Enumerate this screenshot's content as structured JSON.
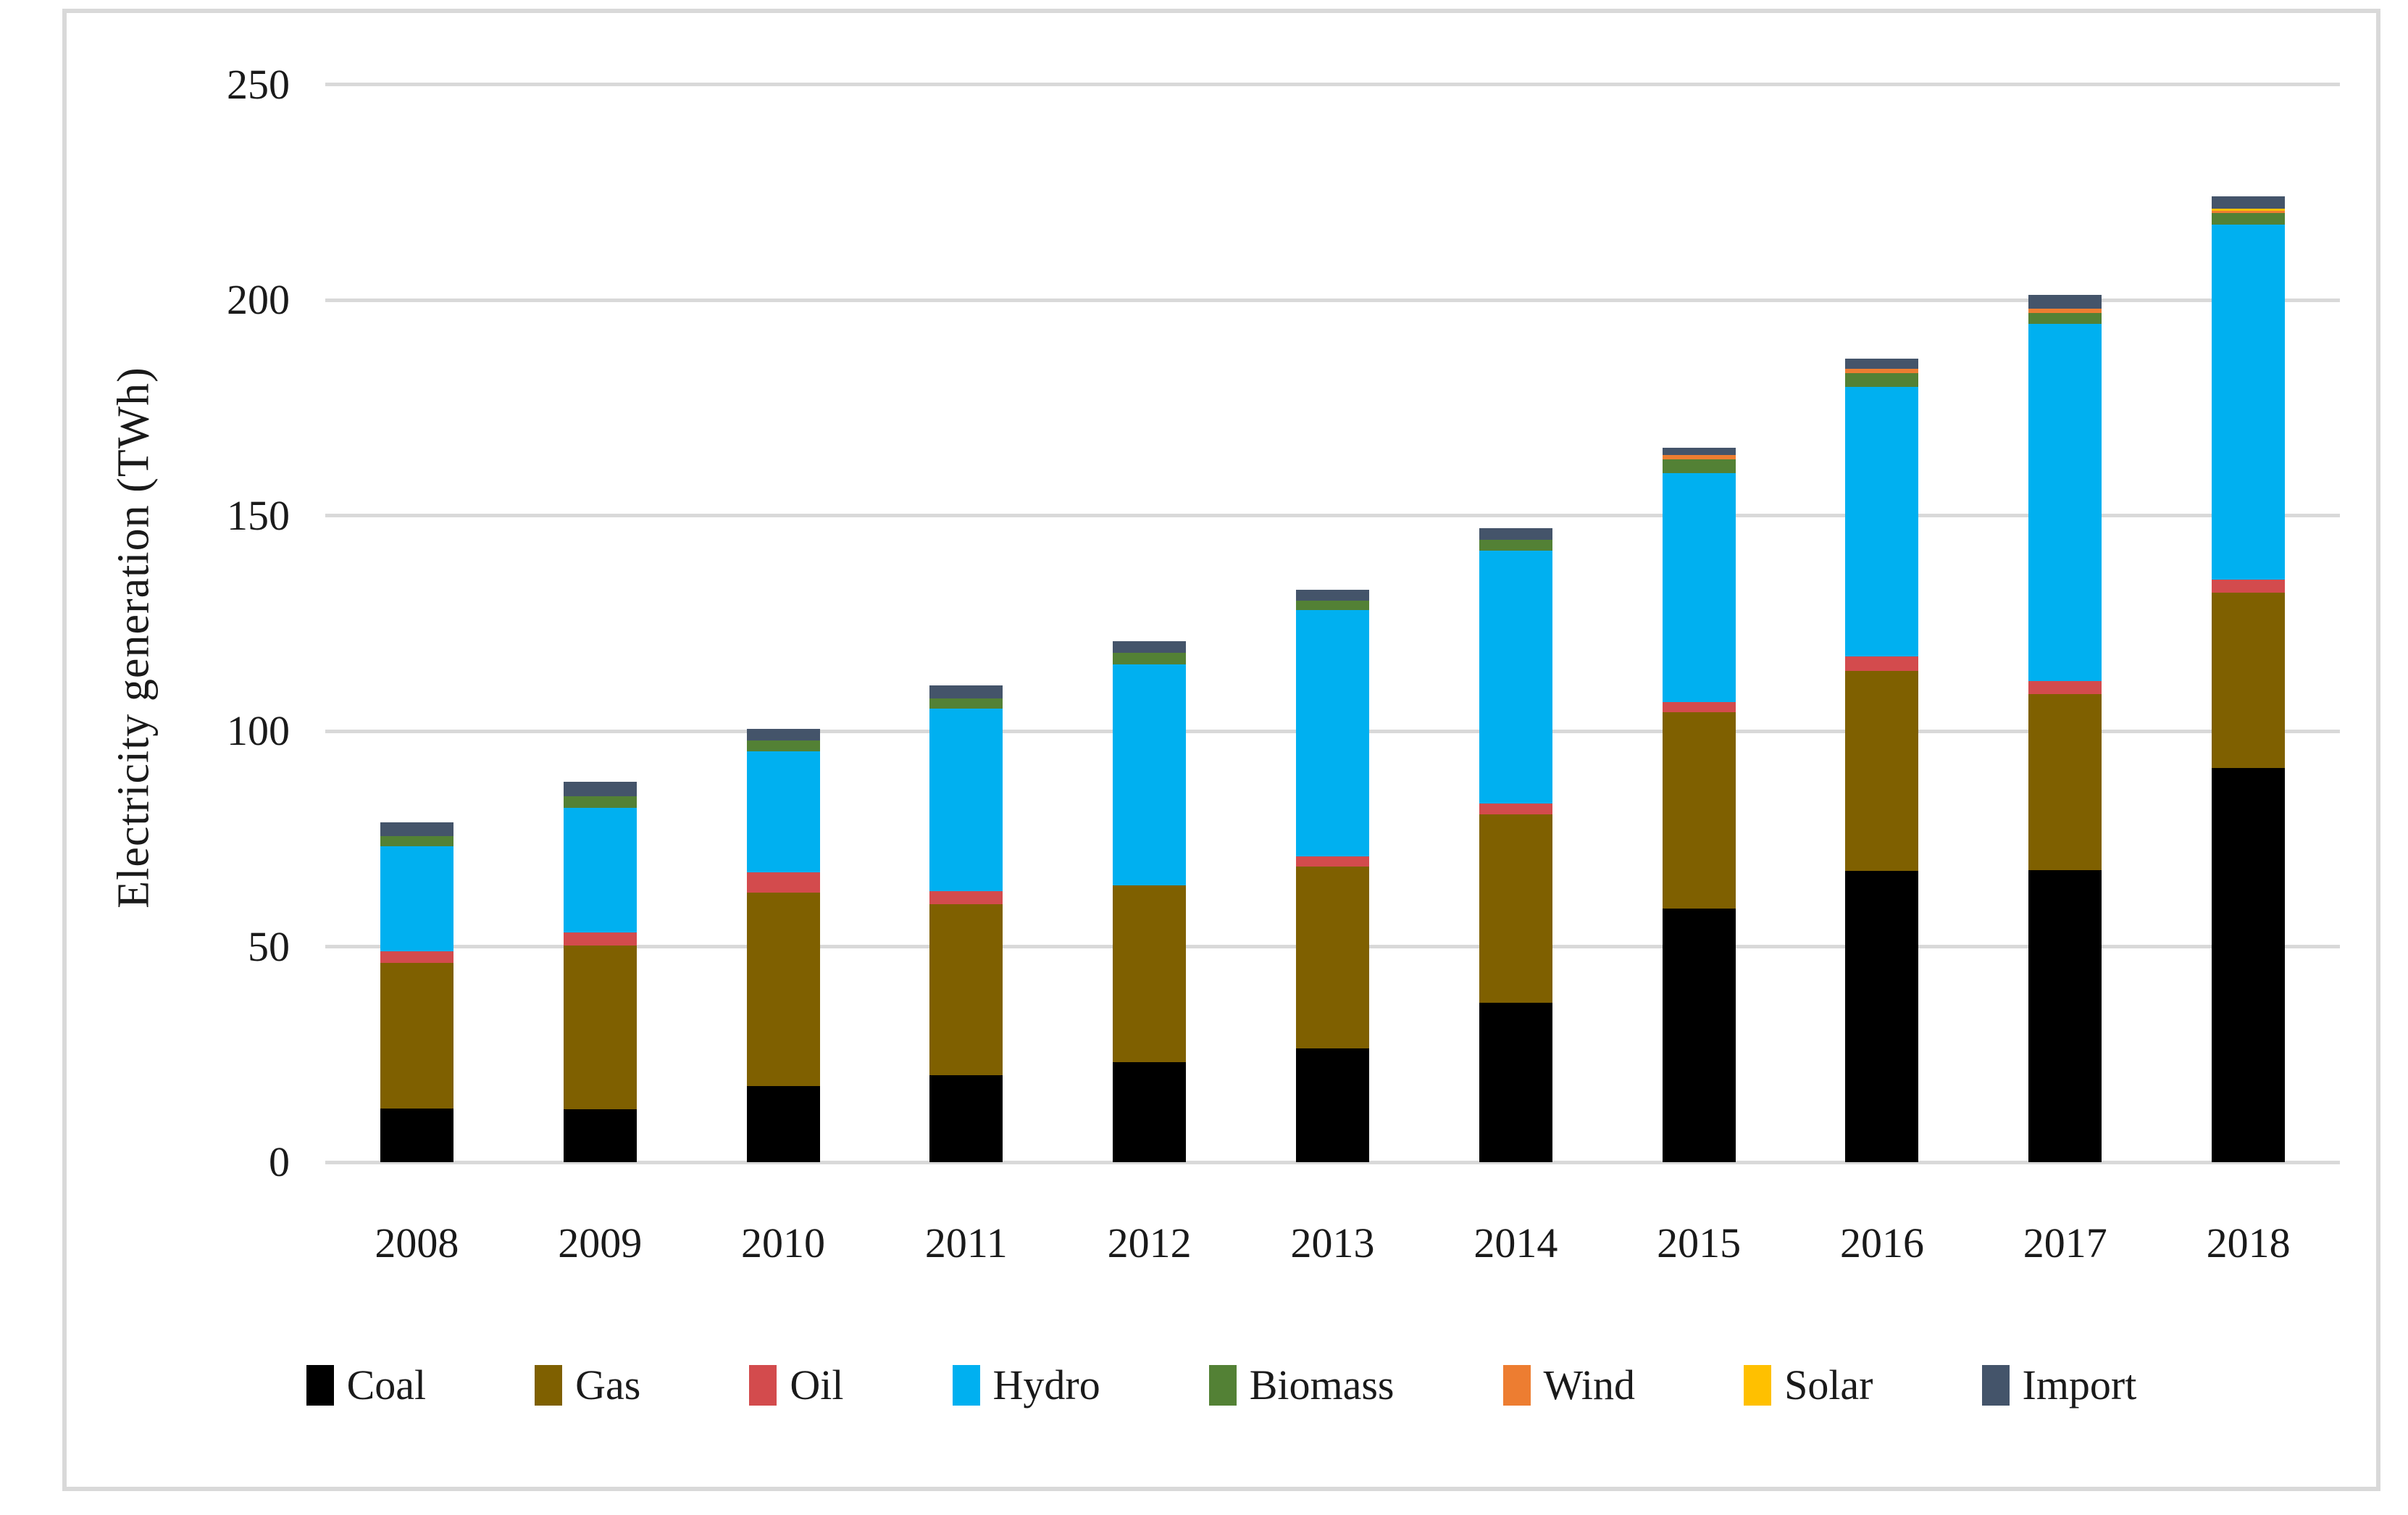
{
  "figure": {
    "y_axis_title": "Electricity generation (TWh)",
    "text_color": "#1a1a1a",
    "gridline_color": "#d9d9d9",
    "frame_color": "#d9d9d9",
    "background_color": "#ffffff"
  },
  "chart_data": {
    "type": "bar",
    "stacked": true,
    "title": "",
    "xlabel": "",
    "ylabel": "Electricity generation (TWh)",
    "ylim": [
      0,
      250
    ],
    "yticks": [
      0,
      50,
      100,
      150,
      200,
      250
    ],
    "grid": true,
    "legend_position": "bottom",
    "categories": [
      "2008",
      "2009",
      "2010",
      "2011",
      "2012",
      "2013",
      "2014",
      "2015",
      "2016",
      "2017",
      "2018"
    ],
    "series": [
      {
        "name": "Coal",
        "color": "#000000",
        "values": [
          12.4,
          12.3,
          17.7,
          20.2,
          23.2,
          26.4,
          36.9,
          58.8,
          67.5,
          67.7,
          91.4
        ]
      },
      {
        "name": "Gas",
        "color": "#7f6000",
        "values": [
          33.8,
          38.0,
          44.9,
          39.7,
          41.0,
          42.1,
          43.7,
          45.6,
          46.5,
          40.9,
          40.7
        ]
      },
      {
        "name": "Oil",
        "color": "#d34b4d",
        "values": [
          2.7,
          2.9,
          4.6,
          2.9,
          0,
          2.5,
          2.6,
          2.3,
          3.3,
          3.0,
          3.0
        ]
      },
      {
        "name": "Hydro",
        "color": "#00b0f0",
        "values": [
          24.3,
          29.0,
          28.1,
          42.4,
          51.3,
          57.1,
          58.6,
          53.1,
          62.5,
          82.8,
          82.3
        ]
      },
      {
        "name": "Biomass",
        "color": "#538135",
        "values": [
          2.4,
          2.6,
          2.5,
          2.4,
          2.7,
          2.2,
          2.6,
          3.3,
          3.2,
          2.6,
          2.7
        ]
      },
      {
        "name": "Wind",
        "color": "#ed7d31",
        "values": [
          0,
          0,
          0,
          0,
          0,
          0,
          0,
          0.9,
          1.0,
          1.0,
          0.6
        ]
      },
      {
        "name": "Solar",
        "color": "#ffc000",
        "values": [
          0,
          0,
          0,
          0,
          0,
          0,
          0,
          0,
          0,
          0,
          0.4
        ]
      },
      {
        "name": "Import",
        "color": "#44546a",
        "values": [
          3.2,
          3.4,
          2.7,
          3.0,
          2.7,
          2.5,
          2.7,
          1.7,
          2.4,
          3.2,
          3.0
        ]
      }
    ],
    "totals": [
      78.8,
      88.2,
      100.5,
      110.6,
      120.9,
      132.8,
      147.1,
      165.7,
      186.4,
      201.2,
      224.1
    ]
  }
}
